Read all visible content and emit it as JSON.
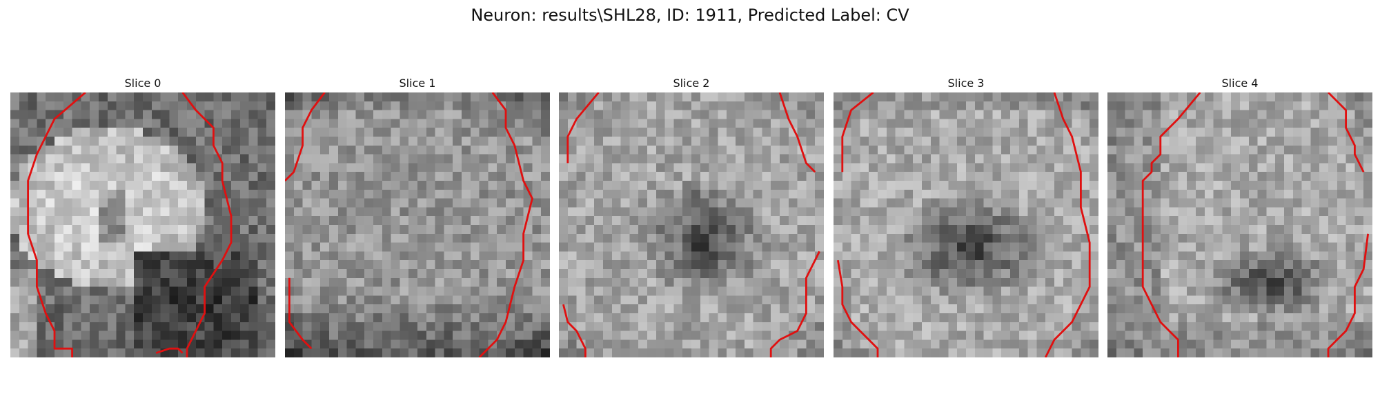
{
  "figure": {
    "title": "Neuron: results\\SHL28, ID: 1911, Predicted Label: CV",
    "contour_color": "#e01010"
  },
  "panels": [
    {
      "title": "Slice 0",
      "pattern": "bright-ellipse-dark-corner"
    },
    {
      "title": "Slice 1",
      "pattern": "uniform-noisy"
    },
    {
      "title": "Slice 2",
      "pattern": "dark-center-cross"
    },
    {
      "title": "Slice 3",
      "pattern": "dark-center-blob"
    },
    {
      "title": "Slice 4",
      "pattern": "dark-lower-right-blob"
    }
  ]
}
